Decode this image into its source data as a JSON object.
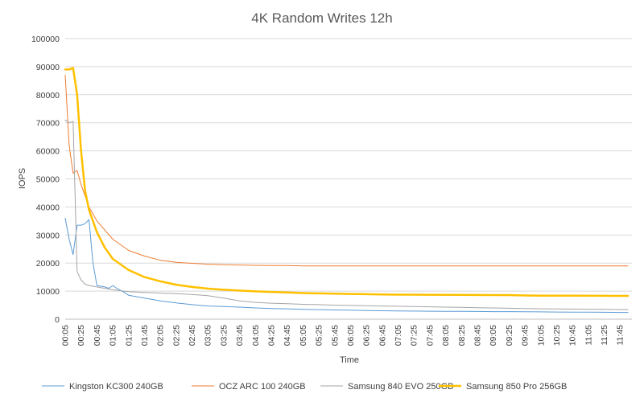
{
  "chart_data": {
    "type": "line",
    "title": "4K Random Writes 12h",
    "xlabel": "Time",
    "ylabel": "IOPS",
    "ylim": [
      0,
      100000
    ],
    "yticks": [
      0,
      10000,
      20000,
      30000,
      40000,
      50000,
      60000,
      70000,
      80000,
      90000,
      100000
    ],
    "x_ticks": [
      "00:05",
      "00:25",
      "00:45",
      "01:05",
      "01:25",
      "01:45",
      "02:05",
      "02:25",
      "02:45",
      "03:05",
      "03:25",
      "03:45",
      "04:05",
      "04:25",
      "04:45",
      "05:05",
      "05:25",
      "05:45",
      "06:05",
      "06:25",
      "06:45",
      "07:05",
      "07:25",
      "07:45",
      "08:05",
      "08:25",
      "08:45",
      "09:05",
      "09:25",
      "09:45",
      "10:05",
      "10:25",
      "10:45",
      "11:05",
      "11:25",
      "11:45"
    ],
    "grid": true,
    "legend": "bottom",
    "series": [
      {
        "name": "Kingston KC300 240GB",
        "color": "#5b9bd5",
        "width": 1,
        "points": [
          [
            "00:05",
            36000
          ],
          [
            "00:10",
            28500
          ],
          [
            "00:15",
            23000
          ],
          [
            "00:20",
            33500
          ],
          [
            "00:25",
            33500
          ],
          [
            "00:30",
            34000
          ],
          [
            "00:35",
            35500
          ],
          [
            "00:40",
            20000
          ],
          [
            "00:45",
            12000
          ],
          [
            "00:55",
            11500
          ],
          [
            "01:00",
            11000
          ],
          [
            "01:05",
            12000
          ],
          [
            "01:10",
            11000
          ],
          [
            "01:20",
            9500
          ],
          [
            "01:25",
            8500
          ],
          [
            "01:45",
            7500
          ],
          [
            "02:05",
            6500
          ],
          [
            "02:25",
            5800
          ],
          [
            "02:45",
            5200
          ],
          [
            "03:05",
            4700
          ],
          [
            "03:25",
            4500
          ],
          [
            "03:45",
            4300
          ],
          [
            "04:05",
            4000
          ],
          [
            "04:25",
            3800
          ],
          [
            "04:45",
            3700
          ],
          [
            "05:05",
            3500
          ],
          [
            "05:25",
            3400
          ],
          [
            "05:45",
            3300
          ],
          [
            "06:05",
            3200
          ],
          [
            "06:25",
            3100
          ],
          [
            "06:45",
            3000
          ],
          [
            "07:05",
            2950
          ],
          [
            "07:25",
            2900
          ],
          [
            "07:45",
            2850
          ],
          [
            "08:05",
            2800
          ],
          [
            "08:25",
            2800
          ],
          [
            "08:45",
            2750
          ],
          [
            "09:05",
            2700
          ],
          [
            "09:25",
            2700
          ],
          [
            "09:45",
            2650
          ],
          [
            "10:05",
            2600
          ],
          [
            "10:25",
            2550
          ],
          [
            "10:45",
            2500
          ],
          [
            "11:05",
            2500
          ],
          [
            "11:25",
            2450
          ],
          [
            "11:45",
            2400
          ],
          [
            "11:55",
            2400
          ]
        ]
      },
      {
        "name": "OCZ ARC 100 240GB",
        "color": "#ed7d31",
        "width": 1,
        "points": [
          [
            "00:05",
            87000
          ],
          [
            "00:10",
            62000
          ],
          [
            "00:15",
            52000
          ],
          [
            "00:20",
            53000
          ],
          [
            "00:25",
            48000
          ],
          [
            "00:35",
            40000
          ],
          [
            "00:45",
            35000
          ],
          [
            "01:05",
            28500
          ],
          [
            "01:25",
            24500
          ],
          [
            "01:45",
            22500
          ],
          [
            "02:05",
            21000
          ],
          [
            "02:25",
            20300
          ],
          [
            "02:45",
            19900
          ],
          [
            "03:05",
            19600
          ],
          [
            "03:25",
            19400
          ],
          [
            "03:45",
            19300
          ],
          [
            "04:05",
            19200
          ],
          [
            "04:25",
            19100
          ],
          [
            "04:45",
            19100
          ],
          [
            "05:05",
            19000
          ],
          [
            "05:45",
            19000
          ],
          [
            "06:25",
            19000
          ],
          [
            "07:05",
            19000
          ],
          [
            "08:05",
            19000
          ],
          [
            "09:05",
            19000
          ],
          [
            "10:05",
            19000
          ],
          [
            "11:05",
            19000
          ],
          [
            "11:55",
            19000
          ]
        ]
      },
      {
        "name": "Samsung 840 EVO 250GB",
        "color": "#a5a5a5",
        "width": 1,
        "points": [
          [
            "00:05",
            71000
          ],
          [
            "00:10",
            70000
          ],
          [
            "00:15",
            70500
          ],
          [
            "00:20",
            17000
          ],
          [
            "00:25",
            14000
          ],
          [
            "00:30",
            12500
          ],
          [
            "00:35",
            12000
          ],
          [
            "00:45",
            11500
          ],
          [
            "01:05",
            10500
          ],
          [
            "01:25",
            9800
          ],
          [
            "01:45",
            9500
          ],
          [
            "02:05",
            9300
          ],
          [
            "02:25",
            9100
          ],
          [
            "02:45",
            8800
          ],
          [
            "03:05",
            8400
          ],
          [
            "03:25",
            7500
          ],
          [
            "03:45",
            6500
          ],
          [
            "04:05",
            6000
          ],
          [
            "04:25",
            5700
          ],
          [
            "04:45",
            5500
          ],
          [
            "05:05",
            5300
          ],
          [
            "05:25",
            5200
          ],
          [
            "05:45",
            5000
          ],
          [
            "06:05",
            4900
          ],
          [
            "06:25",
            4800
          ],
          [
            "06:45",
            4700
          ],
          [
            "07:05",
            4600
          ],
          [
            "07:25",
            4500
          ],
          [
            "07:45",
            4400
          ],
          [
            "08:05",
            4300
          ],
          [
            "08:25",
            4200
          ],
          [
            "08:45",
            4100
          ],
          [
            "09:05",
            4000
          ],
          [
            "09:25",
            3900
          ],
          [
            "09:45",
            3800
          ],
          [
            "10:05",
            3700
          ],
          [
            "10:25",
            3650
          ],
          [
            "10:45",
            3600
          ],
          [
            "11:05",
            3550
          ],
          [
            "11:25",
            3500
          ],
          [
            "11:45",
            3450
          ],
          [
            "11:55",
            3400
          ]
        ]
      },
      {
        "name": "Samsung 850 Pro 256GB",
        "color": "#ffc000",
        "width": 2.5,
        "points": [
          [
            "00:05",
            89000
          ],
          [
            "00:10",
            89000
          ],
          [
            "00:15",
            89500
          ],
          [
            "00:20",
            80000
          ],
          [
            "00:25",
            60000
          ],
          [
            "00:30",
            46000
          ],
          [
            "00:35",
            39000
          ],
          [
            "00:45",
            31000
          ],
          [
            "00:55",
            25500
          ],
          [
            "01:05",
            21500
          ],
          [
            "01:25",
            17500
          ],
          [
            "01:45",
            15000
          ],
          [
            "02:05",
            13500
          ],
          [
            "02:25",
            12300
          ],
          [
            "02:45",
            11500
          ],
          [
            "03:05",
            10900
          ],
          [
            "03:25",
            10500
          ],
          [
            "03:45",
            10200
          ],
          [
            "04:05",
            9900
          ],
          [
            "04:25",
            9700
          ],
          [
            "04:45",
            9500
          ],
          [
            "05:05",
            9300
          ],
          [
            "05:25",
            9200
          ],
          [
            "05:45",
            9100
          ],
          [
            "06:05",
            9000
          ],
          [
            "06:25",
            8900
          ],
          [
            "06:45",
            8800
          ],
          [
            "07:05",
            8750
          ],
          [
            "07:45",
            8700
          ],
          [
            "08:25",
            8650
          ],
          [
            "09:05",
            8600
          ],
          [
            "09:25",
            8600
          ],
          [
            "09:35",
            8500
          ],
          [
            "09:45",
            8450
          ],
          [
            "10:05",
            8400
          ],
          [
            "10:45",
            8400
          ],
          [
            "11:25",
            8350
          ],
          [
            "11:55",
            8300
          ]
        ]
      }
    ]
  }
}
